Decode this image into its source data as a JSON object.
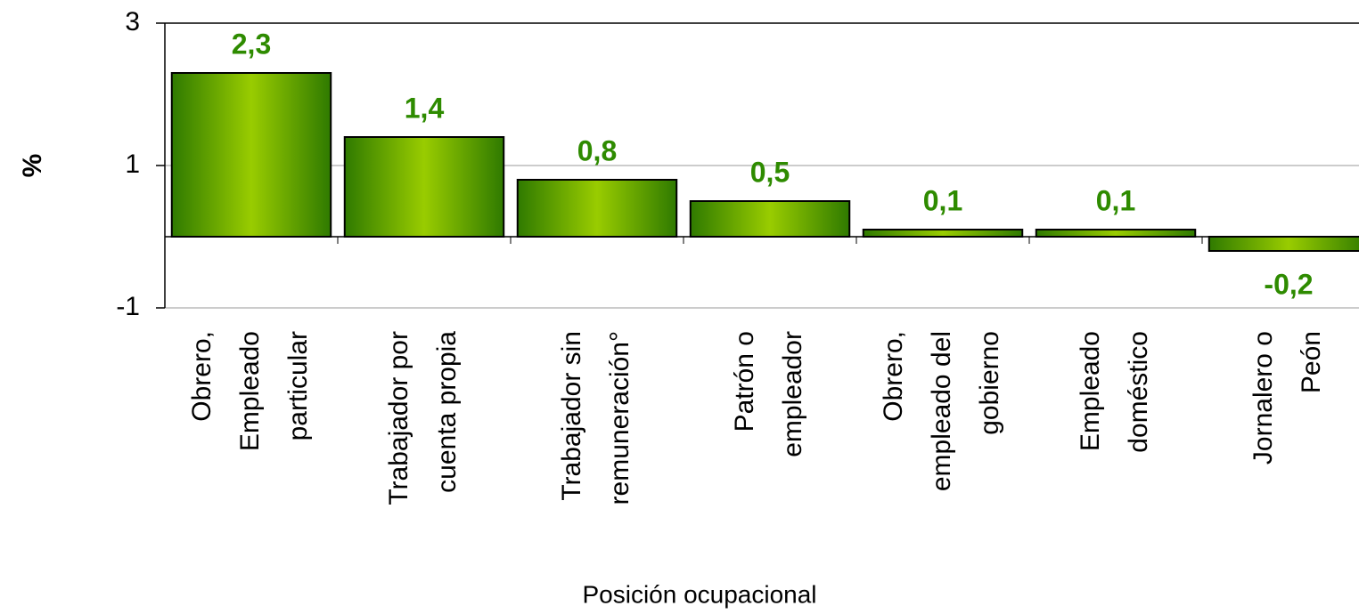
{
  "chart_data": {
    "type": "bar",
    "y_label": "%",
    "x_label": "Posición ocupacional",
    "categories": [
      [
        "Obrero,",
        "Empleado",
        "particular"
      ],
      [
        "Trabajador por",
        "cuenta propia"
      ],
      [
        "Trabajador sin",
        "remuneración°"
      ],
      [
        "Patrón o",
        "empleador"
      ],
      [
        "Obrero,",
        "empleado del",
        "gobierno"
      ],
      [
        "Empleado",
        "doméstico"
      ],
      [
        "Jornalero o",
        "Peón"
      ]
    ],
    "values": [
      2.3,
      1.4,
      0.8,
      0.5,
      0.1,
      0.1,
      -0.2
    ],
    "value_labels": [
      "2,3",
      "1,4",
      "0,8",
      "0,5",
      "0,1",
      "0,1",
      "-0,2"
    ],
    "color": "#99cc00",
    "label_color": "#2e8b00",
    "ylim": [
      -1,
      3
    ],
    "yticks": [
      -1,
      1,
      3
    ],
    "grid": true
  }
}
